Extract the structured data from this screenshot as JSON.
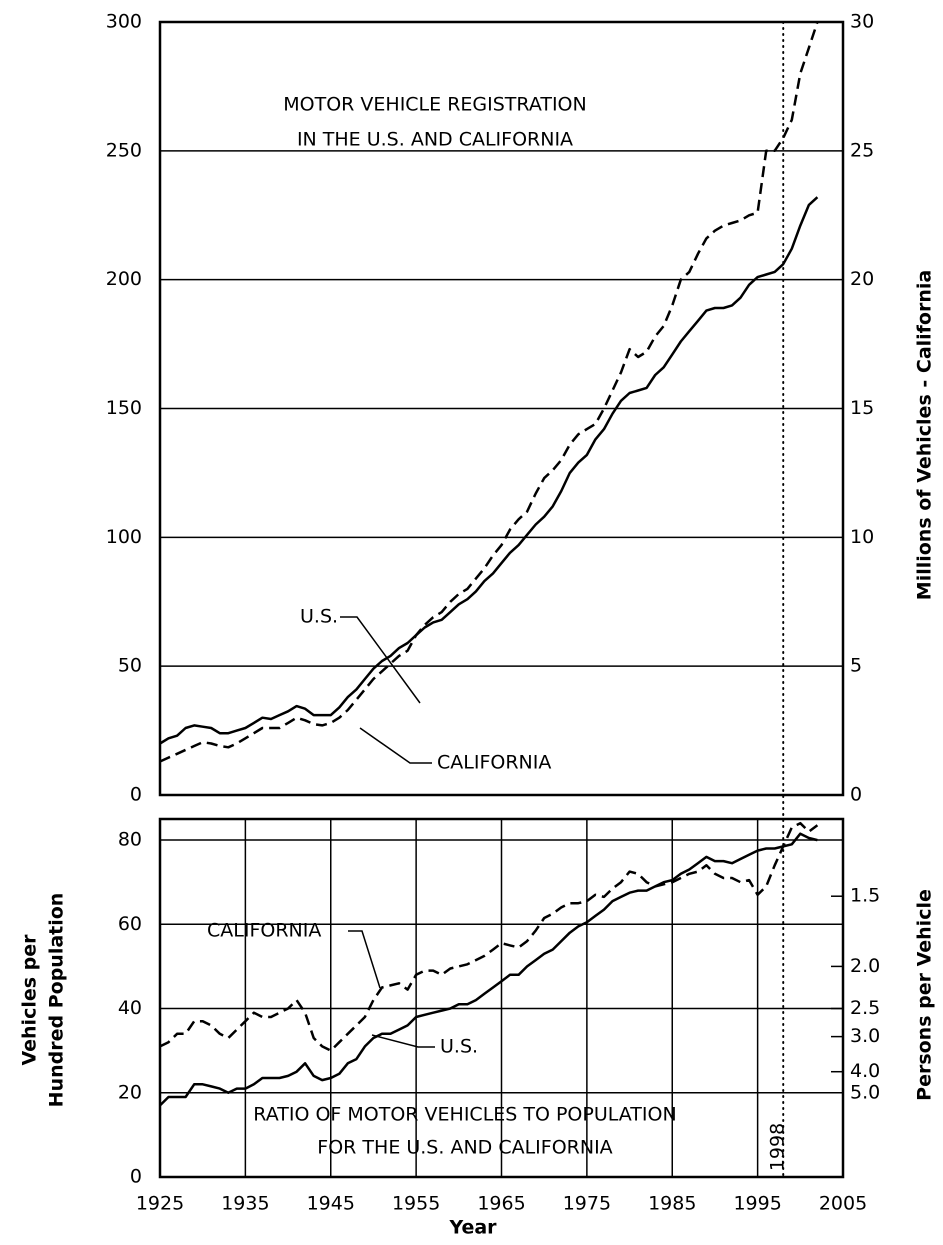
{
  "chart_data": [
    {
      "type": "line",
      "title": [
        "MOTOR VEHICLE REGISTRATION",
        "IN THE U.S. AND CALIFORNIA"
      ],
      "y2label": "Millions of Vehicles - California",
      "x": [
        1925,
        1926,
        1927,
        1928,
        1929,
        1930,
        1931,
        1932,
        1933,
        1934,
        1935,
        1936,
        1937,
        1938,
        1939,
        1940,
        1941,
        1942,
        1943,
        1944,
        1945,
        1946,
        1947,
        1948,
        1949,
        1950,
        1951,
        1952,
        1953,
        1954,
        1955,
        1956,
        1957,
        1958,
        1959,
        1960,
        1961,
        1962,
        1963,
        1964,
        1965,
        1966,
        1967,
        1968,
        1969,
        1970,
        1971,
        1972,
        1973,
        1974,
        1975,
        1976,
        1977,
        1978,
        1979,
        1980,
        1981,
        1982,
        1983,
        1984,
        1985,
        1986,
        1987,
        1988,
        1989,
        1990,
        1991,
        1992,
        1993,
        1994,
        1995,
        1996,
        1997,
        1998,
        1999,
        2000,
        2001,
        2002
      ],
      "xlim": [
        1925,
        2005
      ],
      "ylim": [
        0,
        300
      ],
      "yticks": [
        0,
        50,
        100,
        150,
        200,
        250,
        300
      ],
      "y2lim": [
        0,
        30
      ],
      "y2ticks": [
        0,
        5,
        10,
        15,
        20,
        25,
        30
      ],
      "grid": true,
      "series": [
        {
          "name": "U.S.",
          "color": "#000000",
          "linestyle": "solid",
          "values": [
            20,
            22,
            23,
            26,
            27,
            26.5,
            26,
            24,
            24,
            25,
            26,
            28,
            30,
            29.5,
            31,
            32.5,
            34.5,
            33.5,
            31,
            31,
            31,
            34,
            38,
            41,
            45,
            49,
            52,
            54,
            57,
            59,
            62,
            65,
            67,
            68,
            71,
            74,
            76,
            79,
            83,
            86,
            90,
            94,
            97,
            101,
            105,
            108,
            112,
            118,
            125,
            129,
            132,
            138,
            142,
            148,
            153,
            156,
            157,
            158,
            163,
            166,
            171,
            176,
            180,
            184,
            188,
            189,
            189,
            190,
            193,
            198,
            201,
            202,
            203,
            206,
            212,
            221,
            229,
            232
          ]
        },
        {
          "name": "CALIFORNIA",
          "color": "#000000",
          "linestyle": "dashed",
          "axis": "y2",
          "values": [
            1.3,
            1.45,
            1.6,
            1.75,
            1.9,
            2.05,
            2.0,
            1.9,
            1.85,
            2.0,
            2.2,
            2.4,
            2.6,
            2.6,
            2.6,
            2.8,
            3.0,
            2.9,
            2.75,
            2.7,
            2.8,
            3.0,
            3.3,
            3.7,
            4.1,
            4.5,
            4.8,
            5.1,
            5.4,
            5.6,
            6.2,
            6.6,
            6.9,
            7.1,
            7.5,
            7.8,
            8.0,
            8.4,
            8.8,
            9.3,
            9.7,
            10.3,
            10.7,
            11.0,
            11.7,
            12.3,
            12.6,
            13.0,
            13.6,
            14.0,
            14.2,
            14.4,
            15.0,
            15.7,
            16.4,
            17.3,
            17.0,
            17.2,
            17.8,
            18.2,
            19.0,
            20.0,
            20.3,
            21.0,
            21.6,
            21.9,
            22.1,
            22.2,
            22.3,
            22.5,
            22.6,
            25.0,
            25.0,
            25.5,
            26.2,
            28.0,
            29.0,
            30.0
          ]
        }
      ]
    },
    {
      "type": "line",
      "title": [
        "RATIO OF MOTOR VEHICLES TO POPULATION",
        "FOR THE U.S. AND CALIFORNIA"
      ],
      "xlabel": "Year",
      "ylabel": [
        "Vehicles per",
        "Hundred Population"
      ],
      "y2label": "Persons per Vehicle",
      "x": [
        1925,
        1926,
        1927,
        1928,
        1929,
        1930,
        1931,
        1932,
        1933,
        1934,
        1935,
        1936,
        1937,
        1938,
        1939,
        1940,
        1941,
        1942,
        1943,
        1944,
        1945,
        1946,
        1947,
        1948,
        1949,
        1950,
        1951,
        1952,
        1953,
        1954,
        1955,
        1956,
        1957,
        1958,
        1959,
        1960,
        1961,
        1962,
        1963,
        1964,
        1965,
        1966,
        1967,
        1968,
        1969,
        1970,
        1971,
        1972,
        1973,
        1974,
        1975,
        1976,
        1977,
        1978,
        1979,
        1980,
        1981,
        1982,
        1983,
        1984,
        1985,
        1986,
        1987,
        1988,
        1989,
        1990,
        1991,
        1992,
        1993,
        1994,
        1995,
        1996,
        1997,
        1998,
        1999,
        2000,
        2001,
        2002
      ],
      "xlim": [
        1925,
        2005
      ],
      "xticks": [
        1925,
        1935,
        1945,
        1955,
        1965,
        1975,
        1985,
        1995,
        2005
      ],
      "ylim": [
        0,
        85
      ],
      "yticks": [
        0,
        20,
        40,
        60,
        80
      ],
      "y2scale": "reciprocal",
      "y2ticks": [
        1.5,
        {
          "value": 2,
          "label": "2.0"
        },
        2.5,
        {
          "value": 3,
          "label": "3.0"
        },
        {
          "value": 4,
          "label": "4.0"
        },
        {
          "value": 5,
          "label": "5.0"
        }
      ],
      "grid": true,
      "vline": 1998,
      "series": [
        {
          "name": "U.S.",
          "color": "#000000",
          "linestyle": "solid",
          "values": [
            17,
            19,
            19,
            19,
            22,
            22,
            21.5,
            21,
            20,
            21,
            21,
            22,
            23.5,
            23.5,
            23.5,
            24,
            25,
            27,
            24,
            23,
            23.5,
            24.5,
            27,
            28,
            31,
            33,
            34,
            34,
            35,
            36,
            38,
            38.5,
            39,
            39.5,
            40,
            41,
            41,
            42,
            43.5,
            45,
            46.5,
            48,
            48,
            50,
            51.5,
            53,
            54,
            56,
            58,
            59.5,
            60.5,
            62,
            63.5,
            65.5,
            66.5,
            67.5,
            68,
            68,
            69,
            70,
            70.5,
            72,
            73,
            74.5,
            76,
            75,
            75,
            74.5,
            75.5,
            76.5,
            77.5,
            78,
            78,
            78.5,
            79,
            81.5,
            80.5,
            80
          ]
        },
        {
          "name": "CALIFORNIA",
          "color": "#000000",
          "linestyle": "dashed",
          "values": [
            31,
            32,
            34,
            34,
            37,
            37,
            36,
            34,
            33,
            35,
            37,
            39,
            38,
            38,
            39,
            40,
            42,
            39,
            33,
            31,
            30,
            32,
            34,
            36,
            38,
            42,
            45,
            45.5,
            46,
            44.5,
            48,
            49,
            49,
            48,
            49.5,
            50,
            50.5,
            51.5,
            52.5,
            54,
            55.5,
            55,
            54.5,
            56,
            58.5,
            61.5,
            62.5,
            64,
            65,
            65,
            65.5,
            67,
            66.5,
            68.5,
            70,
            72.5,
            72,
            70,
            69,
            69.5,
            70,
            71,
            72,
            72.5,
            74,
            72,
            71,
            71,
            70,
            70.5,
            67,
            69,
            74,
            78.5,
            83,
            84,
            82,
            83.5
          ]
        }
      ]
    }
  ]
}
